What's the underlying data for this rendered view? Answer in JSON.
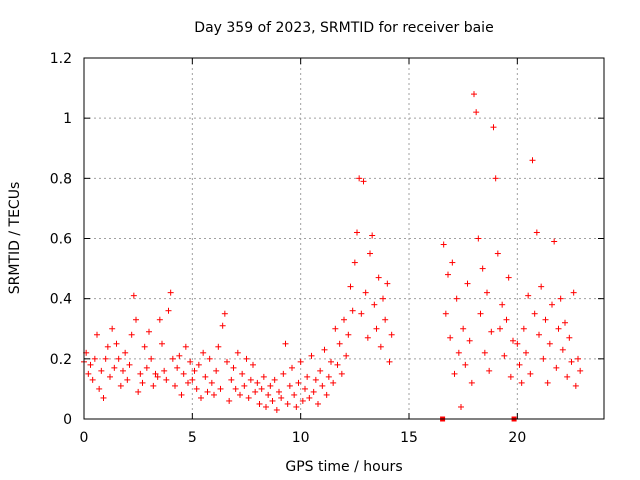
{
  "chart_data": {
    "type": "scatter",
    "title": "Day 359 of 2023, SRMTID for receiver baie",
    "xlabel": "GPS time / hours",
    "ylabel": "SRMTID / TECUs",
    "xlim": [
      0,
      24
    ],
    "ylim": [
      0,
      1.2
    ],
    "xticks": [
      0,
      5,
      10,
      15,
      20
    ],
    "yticks": [
      0,
      0.2,
      0.4,
      0.6,
      0.8,
      1.0,
      1.2
    ],
    "xtick_labels": [
      "0",
      "5",
      "10",
      "15",
      "20"
    ],
    "ytick_labels": [
      "0",
      "0.2",
      "0.4",
      "0.6",
      "0.8",
      "1",
      "1.2"
    ],
    "grid": true,
    "legend": "none",
    "marker": "plus",
    "color": "#ff0000",
    "zero_markers": [
      16.55,
      19.85
    ],
    "series": [
      {
        "name": "SRMTID",
        "points": [
          [
            0.0,
            0.19
          ],
          [
            0.1,
            0.22
          ],
          [
            0.2,
            0.15
          ],
          [
            0.3,
            0.18
          ],
          [
            0.4,
            0.13
          ],
          [
            0.5,
            0.2
          ],
          [
            0.6,
            0.28
          ],
          [
            0.7,
            0.1
          ],
          [
            0.8,
            0.16
          ],
          [
            0.9,
            0.07
          ],
          [
            1.0,
            0.2
          ],
          [
            1.1,
            0.24
          ],
          [
            1.2,
            0.14
          ],
          [
            1.3,
            0.3
          ],
          [
            1.4,
            0.17
          ],
          [
            1.5,
            0.25
          ],
          [
            1.6,
            0.2
          ],
          [
            1.7,
            0.11
          ],
          [
            1.8,
            0.16
          ],
          [
            1.9,
            0.22
          ],
          [
            2.0,
            0.13
          ],
          [
            2.1,
            0.18
          ],
          [
            2.2,
            0.28
          ],
          [
            2.3,
            0.41
          ],
          [
            2.4,
            0.33
          ],
          [
            2.5,
            0.09
          ],
          [
            2.6,
            0.15
          ],
          [
            2.7,
            0.12
          ],
          [
            2.8,
            0.24
          ],
          [
            2.9,
            0.17
          ],
          [
            3.0,
            0.29
          ],
          [
            3.1,
            0.2
          ],
          [
            3.2,
            0.11
          ],
          [
            3.3,
            0.15
          ],
          [
            3.4,
            0.14
          ],
          [
            3.5,
            0.33
          ],
          [
            3.6,
            0.25
          ],
          [
            3.7,
            0.16
          ],
          [
            3.8,
            0.13
          ],
          [
            3.9,
            0.36
          ],
          [
            4.0,
            0.42
          ],
          [
            4.1,
            0.2
          ],
          [
            4.2,
            0.11
          ],
          [
            4.3,
            0.17
          ],
          [
            4.4,
            0.21
          ],
          [
            4.5,
            0.08
          ],
          [
            4.6,
            0.15
          ],
          [
            4.7,
            0.24
          ],
          [
            4.8,
            0.12
          ],
          [
            4.9,
            0.19
          ],
          [
            5.0,
            0.13
          ],
          [
            5.1,
            0.16
          ],
          [
            5.2,
            0.1
          ],
          [
            5.3,
            0.18
          ],
          [
            5.4,
            0.07
          ],
          [
            5.5,
            0.22
          ],
          [
            5.6,
            0.14
          ],
          [
            5.7,
            0.09
          ],
          [
            5.8,
            0.2
          ],
          [
            5.9,
            0.12
          ],
          [
            6.0,
            0.08
          ],
          [
            6.1,
            0.16
          ],
          [
            6.2,
            0.24
          ],
          [
            6.3,
            0.1
          ],
          [
            6.4,
            0.31
          ],
          [
            6.5,
            0.35
          ],
          [
            6.6,
            0.19
          ],
          [
            6.7,
            0.06
          ],
          [
            6.8,
            0.13
          ],
          [
            6.9,
            0.17
          ],
          [
            7.0,
            0.1
          ],
          [
            7.1,
            0.22
          ],
          [
            7.2,
            0.08
          ],
          [
            7.3,
            0.15
          ],
          [
            7.4,
            0.11
          ],
          [
            7.5,
            0.2
          ],
          [
            7.6,
            0.07
          ],
          [
            7.7,
            0.13
          ],
          [
            7.8,
            0.18
          ],
          [
            7.9,
            0.09
          ],
          [
            8.0,
            0.12
          ],
          [
            8.1,
            0.05
          ],
          [
            8.2,
            0.1
          ],
          [
            8.3,
            0.14
          ],
          [
            8.4,
            0.04
          ],
          [
            8.5,
            0.08
          ],
          [
            8.6,
            0.11
          ],
          [
            8.7,
            0.06
          ],
          [
            8.8,
            0.13
          ],
          [
            8.9,
            0.03
          ],
          [
            9.0,
            0.09
          ],
          [
            9.1,
            0.07
          ],
          [
            9.2,
            0.15
          ],
          [
            9.3,
            0.25
          ],
          [
            9.4,
            0.05
          ],
          [
            9.5,
            0.11
          ],
          [
            9.6,
            0.17
          ],
          [
            9.7,
            0.08
          ],
          [
            9.8,
            0.04
          ],
          [
            9.9,
            0.12
          ],
          [
            10.0,
            0.19
          ],
          [
            10.1,
            0.06
          ],
          [
            10.2,
            0.1
          ],
          [
            10.3,
            0.14
          ],
          [
            10.4,
            0.07
          ],
          [
            10.5,
            0.21
          ],
          [
            10.6,
            0.09
          ],
          [
            10.7,
            0.13
          ],
          [
            10.8,
            0.05
          ],
          [
            10.9,
            0.16
          ],
          [
            11.0,
            0.11
          ],
          [
            11.1,
            0.23
          ],
          [
            11.2,
            0.08
          ],
          [
            11.3,
            0.14
          ],
          [
            11.4,
            0.19
          ],
          [
            11.5,
            0.12
          ],
          [
            11.6,
            0.3
          ],
          [
            11.7,
            0.18
          ],
          [
            11.8,
            0.25
          ],
          [
            11.9,
            0.15
          ],
          [
            12.0,
            0.33
          ],
          [
            12.1,
            0.21
          ],
          [
            12.2,
            0.28
          ],
          [
            12.3,
            0.44
          ],
          [
            12.4,
            0.36
          ],
          [
            12.5,
            0.52
          ],
          [
            12.6,
            0.62
          ],
          [
            12.7,
            0.8
          ],
          [
            12.8,
            0.35
          ],
          [
            12.9,
            0.79
          ],
          [
            13.0,
            0.42
          ],
          [
            13.1,
            0.27
          ],
          [
            13.2,
            0.55
          ],
          [
            13.3,
            0.61
          ],
          [
            13.4,
            0.38
          ],
          [
            13.5,
            0.3
          ],
          [
            13.6,
            0.47
          ],
          [
            13.7,
            0.24
          ],
          [
            13.8,
            0.4
          ],
          [
            13.9,
            0.33
          ],
          [
            14.0,
            0.45
          ],
          [
            14.1,
            0.19
          ],
          [
            14.2,
            0.28
          ],
          [
            16.6,
            0.58
          ],
          [
            16.7,
            0.35
          ],
          [
            16.8,
            0.48
          ],
          [
            16.9,
            0.27
          ],
          [
            17.0,
            0.52
          ],
          [
            17.1,
            0.15
          ],
          [
            17.2,
            0.4
          ],
          [
            17.3,
            0.22
          ],
          [
            17.4,
            0.04
          ],
          [
            17.5,
            0.3
          ],
          [
            17.6,
            0.18
          ],
          [
            17.7,
            0.45
          ],
          [
            17.8,
            0.26
          ],
          [
            17.9,
            0.12
          ],
          [
            18.0,
            1.08
          ],
          [
            18.1,
            1.02
          ],
          [
            18.2,
            0.6
          ],
          [
            18.3,
            0.35
          ],
          [
            18.4,
            0.5
          ],
          [
            18.5,
            0.22
          ],
          [
            18.6,
            0.42
          ],
          [
            18.7,
            0.16
          ],
          [
            18.8,
            0.29
          ],
          [
            18.9,
            0.97
          ],
          [
            19.0,
            0.8
          ],
          [
            19.1,
            0.55
          ],
          [
            19.2,
            0.3
          ],
          [
            19.3,
            0.38
          ],
          [
            19.4,
            0.21
          ],
          [
            19.5,
            0.33
          ],
          [
            19.6,
            0.47
          ],
          [
            19.7,
            0.14
          ],
          [
            19.8,
            0.26
          ],
          [
            20.0,
            0.25
          ],
          [
            20.1,
            0.18
          ],
          [
            20.2,
            0.12
          ],
          [
            20.3,
            0.3
          ],
          [
            20.4,
            0.22
          ],
          [
            20.5,
            0.41
          ],
          [
            20.6,
            0.15
          ],
          [
            20.7,
            0.86
          ],
          [
            20.8,
            0.35
          ],
          [
            20.9,
            0.62
          ],
          [
            21.0,
            0.28
          ],
          [
            21.1,
            0.44
          ],
          [
            21.2,
            0.2
          ],
          [
            21.3,
            0.33
          ],
          [
            21.4,
            0.12
          ],
          [
            21.5,
            0.25
          ],
          [
            21.6,
            0.38
          ],
          [
            21.7,
            0.59
          ],
          [
            21.8,
            0.17
          ],
          [
            21.9,
            0.3
          ],
          [
            22.0,
            0.4
          ],
          [
            22.1,
            0.23
          ],
          [
            22.2,
            0.32
          ],
          [
            22.3,
            0.14
          ],
          [
            22.4,
            0.27
          ],
          [
            22.5,
            0.19
          ],
          [
            22.6,
            0.42
          ],
          [
            22.7,
            0.11
          ],
          [
            22.8,
            0.2
          ],
          [
            22.9,
            0.16
          ]
        ]
      }
    ]
  }
}
